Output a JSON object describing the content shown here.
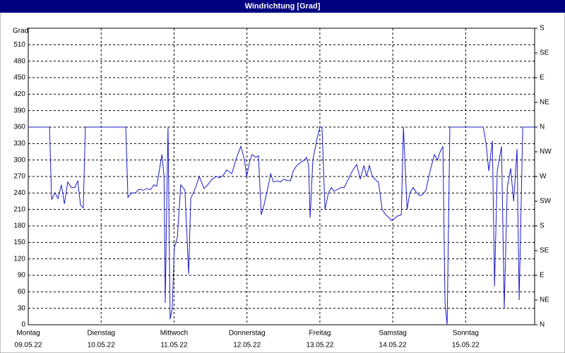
{
  "chart_data": {
    "type": "line",
    "title": "Windrichtung [Grad]",
    "y_label": "Grad",
    "xlim": [
      0,
      166.7
    ],
    "ylim": [
      0,
      540
    ],
    "y2lim": [
      0,
      540
    ],
    "grid": true,
    "xticks": [
      {
        "value": 0,
        "label": "Montag",
        "date": "09.05.22"
      },
      {
        "value": 24,
        "label": "Dienstag",
        "date": "10.05.22"
      },
      {
        "value": 48,
        "label": "Mittwoch",
        "date": "11.05.22"
      },
      {
        "value": 72,
        "label": "Donnerstag",
        "date": "12.05.22"
      },
      {
        "value": 96,
        "label": "Freitag",
        "date": "13.05.22"
      },
      {
        "value": 120,
        "label": "Samstag",
        "date": "14.05.22"
      },
      {
        "value": 144,
        "label": "Sonntag",
        "date": "15.05.22"
      }
    ],
    "yticks": [
      0,
      30,
      60,
      90,
      120,
      150,
      180,
      210,
      240,
      270,
      300,
      330,
      360,
      390,
      420,
      450,
      480,
      510
    ],
    "y2ticks": [
      {
        "value": 0,
        "label": "N"
      },
      {
        "value": 45,
        "label": "NE"
      },
      {
        "value": 90,
        "label": "E"
      },
      {
        "value": 135,
        "label": "SE"
      },
      {
        "value": 180,
        "label": "S"
      },
      {
        "value": 225,
        "label": "SW"
      },
      {
        "value": 270,
        "label": "W"
      },
      {
        "value": 315,
        "label": "NW"
      },
      {
        "value": 360,
        "label": "N"
      },
      {
        "value": 405,
        "label": "NE"
      },
      {
        "value": 450,
        "label": "E"
      },
      {
        "value": 495,
        "label": "SE"
      },
      {
        "value": 540,
        "label": "S"
      }
    ],
    "series": [
      {
        "name": "Windrichtung",
        "color": "#1c1cc8",
        "x": [
          0,
          7.0,
          7.7,
          8.8,
          9.8,
          10.9,
          11.9,
          13.0,
          14.2,
          15.3,
          16.3,
          17.2,
          18.1,
          18.8,
          32.1,
          32.8,
          34.0,
          35.3,
          36.5,
          37.9,
          39.1,
          40.2,
          41.4,
          42.3,
          44.0,
          44.7,
          45.1,
          45.6,
          46.0,
          46.7,
          47.4,
          48.1,
          49.1,
          50.2,
          51.6,
          52.8,
          53.5,
          55.1,
          56.3,
          57.9,
          59.1,
          60.5,
          61.9,
          63.0,
          64.2,
          65.3,
          67.0,
          68.6,
          70.0,
          71.2,
          71.9,
          73.0,
          73.7,
          74.9,
          75.8,
          76.7,
          77.7,
          79.1,
          79.8,
          80.7,
          81.9,
          83.0,
          84.0,
          85.1,
          86.3,
          87.2,
          88.4,
          89.5,
          90.9,
          91.6,
          92.3,
          92.8,
          93.7,
          95.1,
          96.0,
          96.7,
          97.7,
          98.8,
          99.8,
          100.7,
          101.9,
          103.0,
          104.0,
          105.1,
          106.7,
          108.1,
          109.3,
          110.5,
          111.4,
          112.3,
          113.3,
          114.7,
          115.3,
          116.5,
          117.7,
          118.8,
          119.5,
          120.2,
          121.6,
          122.8,
          123.5,
          124.0,
          124.7,
          125.6,
          126.7,
          127.9,
          128.8,
          129.8,
          130.9,
          132.3,
          133.7,
          134.7,
          135.6,
          136.5,
          137.2,
          137.9,
          138.8,
          149.8,
          150.7,
          151.6,
          152.8,
          153.5,
          154.4,
          155.8,
          156.7,
          157.7,
          158.8,
          159.8,
          160.9,
          161.6,
          162.8,
          166.7
        ],
        "values": [
          360,
          360,
          228,
          240,
          230,
          255,
          220,
          260,
          250,
          250,
          262,
          218,
          213,
          360,
          360,
          232,
          240,
          240,
          247,
          245,
          248,
          246,
          255,
          252,
          310,
          270,
          40,
          220,
          360,
          10,
          30,
          140,
          160,
          255,
          245,
          92,
          230,
          250,
          270,
          248,
          255,
          265,
          270,
          268,
          272,
          282,
          275,
          305,
          325,
          300,
          270,
          300,
          310,
          305,
          308,
          200,
          220,
          255,
          275,
          260,
          262,
          260,
          265,
          263,
          262,
          280,
          290,
          295,
          300,
          305,
          290,
          195,
          300,
          340,
          360,
          360,
          210,
          240,
          250,
          243,
          247,
          250,
          250,
          262,
          280,
          292,
          265,
          290,
          270,
          290,
          270,
          262,
          260,
          210,
          200,
          195,
          190,
          192,
          198,
          200,
          360,
          300,
          210,
          240,
          250,
          240,
          235,
          237,
          245,
          280,
          310,
          300,
          315,
          325,
          40,
          0,
          360,
          360,
          330,
          280,
          335,
          70,
          280,
          325,
          30,
          250,
          285,
          225,
          320,
          45,
          360,
          360
        ]
      }
    ]
  }
}
